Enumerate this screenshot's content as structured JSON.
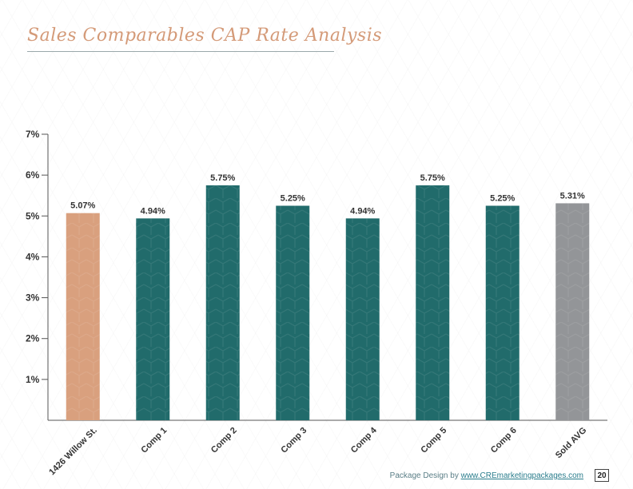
{
  "page": {
    "title": "Sales Comparables CAP Rate Analysis",
    "footer_prefix": "Package Design by ",
    "footer_link": "www.CREmarketingpackages.com",
    "page_number": "20"
  },
  "chart_data": {
    "type": "bar",
    "title": "",
    "xlabel": "",
    "ylabel": "",
    "categories": [
      "1426 Willow St.",
      "Comp 1",
      "Comp 2",
      "Comp 3",
      "Comp 4",
      "Comp 5",
      "Comp 6",
      "Sold AVG"
    ],
    "values": [
      5.07,
      4.94,
      5.75,
      5.25,
      4.94,
      5.75,
      5.25,
      5.31
    ],
    "value_labels": [
      "5.07%",
      "4.94%",
      "5.75%",
      "5.25%",
      "4.94%",
      "5.75%",
      "5.25%",
      "5.31%"
    ],
    "bar_colors": [
      "#d9a07e",
      "#216b6b",
      "#216b6b",
      "#216b6b",
      "#216b6b",
      "#216b6b",
      "#216b6b",
      "#939598"
    ],
    "yticks": [
      1,
      2,
      3,
      4,
      5,
      6,
      7
    ],
    "ytick_labels": [
      "1%",
      "2%",
      "3%",
      "4%",
      "5%",
      "6%",
      "7%"
    ],
    "ylim": [
      0,
      7
    ],
    "grid": false,
    "legend": "none"
  }
}
